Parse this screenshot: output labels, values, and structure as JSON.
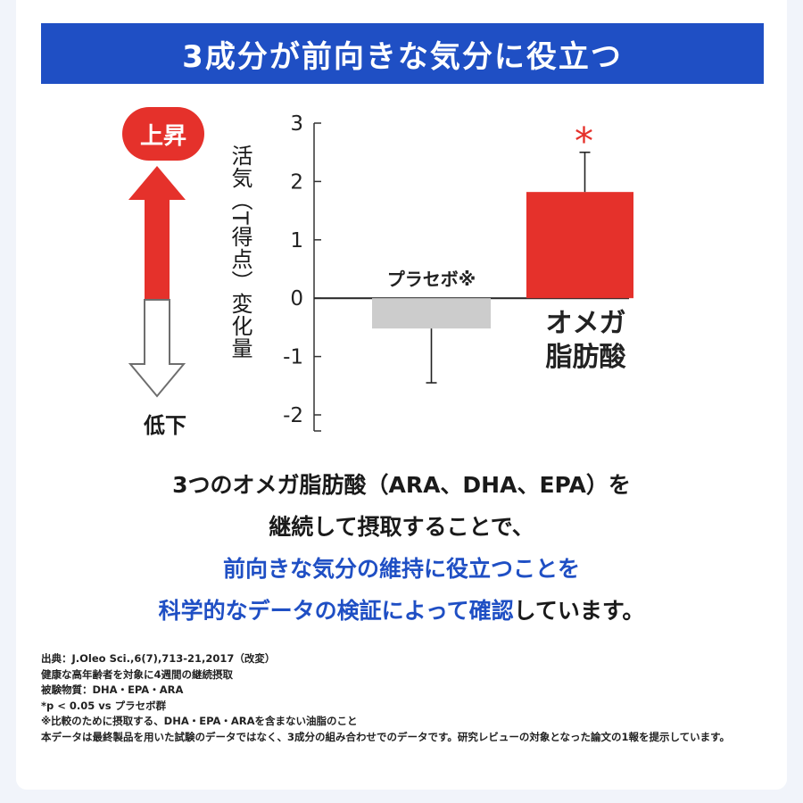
{
  "banner": {
    "title": "3成分が前向きな気分に役立つ"
  },
  "indicator": {
    "up_label": "上昇",
    "down_label": "低下",
    "up_color": "#e5312b",
    "icon": "up-down-arrow-icon"
  },
  "colors": {
    "accent_blue": "#1f4fc4",
    "bar_red": "#e5312b",
    "bar_gray": "#cccccc"
  },
  "chart_data": {
    "type": "bar",
    "ylabel": "活気（T得点）変化量",
    "ylim": [
      -2,
      3
    ],
    "yticks": [
      "3",
      "2",
      "1",
      "0",
      "-1",
      "-2"
    ],
    "ytick_values": [
      3,
      2,
      1,
      0,
      -1,
      -2
    ],
    "categories": [
      "プラセボ※",
      "オメガ脂肪酸"
    ],
    "category_lines": [
      [
        "プラセボ※"
      ],
      [
        "オメガ",
        "脂肪酸"
      ]
    ],
    "values": [
      -0.52,
      1.82
    ],
    "error_ends": [
      -1.45,
      2.5
    ],
    "bar_colors": [
      "#cccccc",
      "#e5312b"
    ],
    "annotation": "*",
    "annotation_target": "オメガ脂肪酸",
    "grid": false
  },
  "statement": {
    "line1": "3つのオメガ脂肪酸（ARA、DHA、EPA）を",
    "line2": "継続して摂取することで、",
    "line3_blue": "前向きな気分の維持に役立つことを",
    "line4_blue": "科学的なデータの検証によって確認",
    "line4_rest": "しています。"
  },
  "notes": [
    "出典：J.Oleo Sci.,6(7),713-21,2017（改変）",
    "健康な高年齢者を対象に4週間の継続摂取",
    "被験物質：DHA・EPA・ARA",
    "*p < 0.05 vs プラセボ群",
    "※比較のために摂取する、DHA・EPA・ARAを含まない油脂のこと",
    "本データは最終製品を用いた試験のデータではなく、3成分の組み合わせでのデータです。研究レビューの対象となった論文の1報を提示しています。"
  ]
}
